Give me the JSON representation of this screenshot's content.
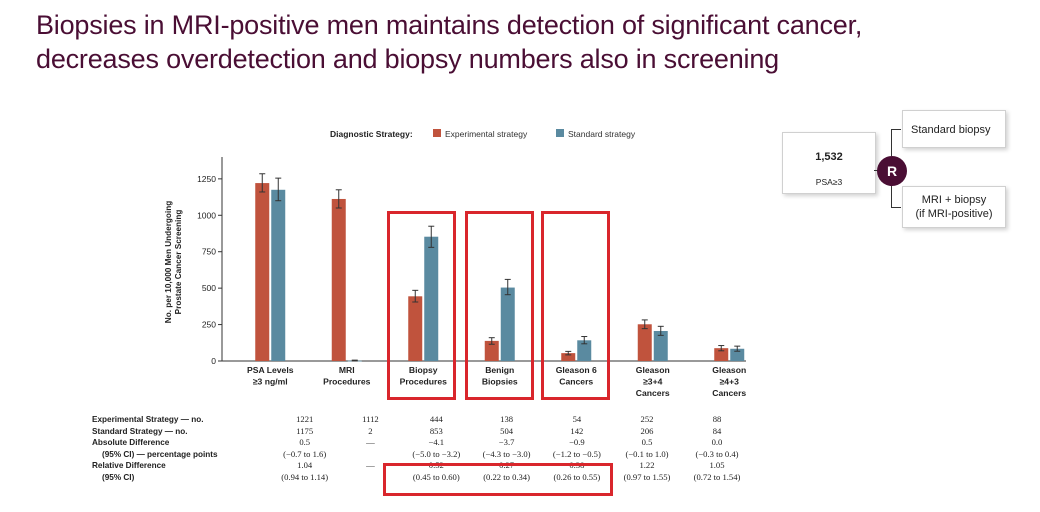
{
  "slide": {
    "title_line1": "Biopsies in MRI-positive men maintains detection of significant cancer,",
    "title_line2": "decreases overdetection and biopsy numbers also in screening"
  },
  "colors": {
    "title": "#4a0e34",
    "experimental": "#c0533d",
    "standard": "#5a8aa0",
    "highlight": "#d9262c",
    "randomize": "#4a0e34"
  },
  "chart_data": {
    "type": "bar",
    "legend_title": "Diagnostic Strategy:",
    "legend_position": "top",
    "ylabel_line1": "No. per 10,000 Men Undergoing",
    "ylabel_line2": "Prostate Cancer Screening",
    "ylim": [
      0,
      1400
    ],
    "yticks": [
      0,
      250,
      500,
      750,
      1000,
      1250
    ],
    "categories": [
      [
        "PSA Levels",
        "≥3 ng/ml"
      ],
      [
        "MRI",
        "Procedures"
      ],
      [
        "Biopsy",
        "Procedures"
      ],
      [
        "Benign",
        "Biopsies"
      ],
      [
        "Gleason 6",
        "Cancers"
      ],
      [
        "Gleason",
        "≥3+4",
        "Cancers"
      ],
      [
        "Gleason",
        "≥4+3",
        "Cancers"
      ]
    ],
    "series": [
      {
        "name": "Experimental strategy",
        "values": [
          1221,
          1112,
          444,
          138,
          54,
          252,
          88
        ],
        "err_low": [
          1160,
          1050,
          405,
          115,
          42,
          222,
          70
        ],
        "err_high": [
          1285,
          1175,
          485,
          160,
          66,
          282,
          106
        ]
      },
      {
        "name": "Standard strategy",
        "values": [
          1175,
          2,
          853,
          504,
          142,
          206,
          84
        ],
        "err_low": [
          1100,
          0,
          780,
          455,
          118,
          176,
          67
        ],
        "err_high": [
          1255,
          6,
          925,
          560,
          168,
          238,
          102
        ]
      }
    ]
  },
  "table": {
    "rows": [
      {
        "label": "Experimental Strategy — no.",
        "style": "bold",
        "values": [
          "1221",
          "1112",
          "444",
          "138",
          "54",
          "252",
          "88"
        ]
      },
      {
        "label": "Standard Strategy — no.",
        "style": "bold",
        "values": [
          "1175",
          "2",
          "853",
          "504",
          "142",
          "206",
          "84"
        ]
      },
      {
        "label": "Absolute Difference",
        "style": "bold",
        "values": [
          "0.5",
          "—",
          "−4.1",
          "−3.7",
          "−0.9",
          "0.5",
          "0.0"
        ]
      },
      {
        "label": "(95% CI) — percentage points",
        "style": "ind",
        "values": [
          "(−0.7 to 1.6)",
          "",
          "(−5.0 to −3.2)",
          "(−4.3 to −3.0)",
          "(−1.2 to −0.5)",
          "(−0.1 to 1.0)",
          "(−0.3 to 0.4)"
        ]
      },
      {
        "label": "Relative Difference",
        "style": "bold",
        "values": [
          "1.04",
          "—",
          "0.52",
          "0.27",
          "0.38",
          "1.22",
          "1.05"
        ]
      },
      {
        "label": "(95% CI)",
        "style": "ind",
        "values": [
          "(0.94 to 1.14)",
          "",
          "(0.45 to 0.60)",
          "(0.22 to 0.34)",
          "(0.26 to 0.55)",
          "(0.97 to 1.55)",
          "(0.72 to 1.54)"
        ]
      }
    ]
  },
  "design": {
    "n": "1,532",
    "criterion": "PSA≥3",
    "randomize_label": "R",
    "arm1": "Standard biopsy",
    "arm2_line1": "MRI + biopsy",
    "arm2_line2": "(if MRI-positive)"
  }
}
